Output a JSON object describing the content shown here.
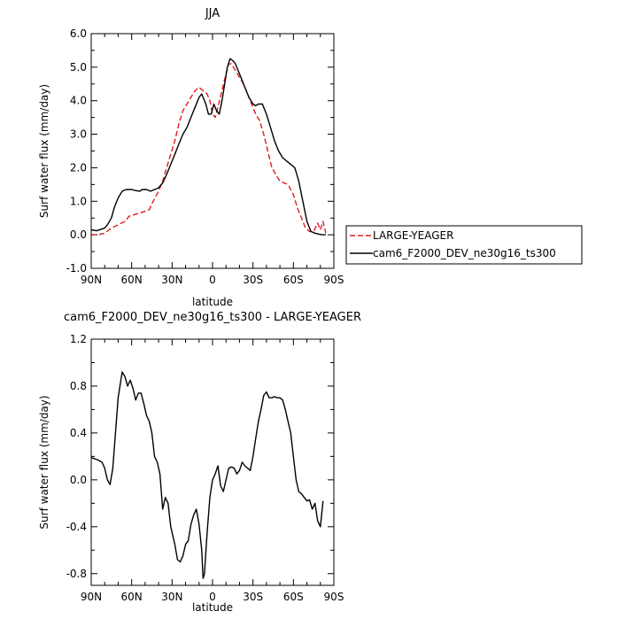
{
  "chart_data": [
    {
      "type": "line",
      "title": "JJA",
      "xlabel": "latitude",
      "ylabel": "Surf water flux (mm/day)",
      "xlim": [
        90,
        -90
      ],
      "ylim": [
        -1.0,
        6.0
      ],
      "x_ticks": [
        90,
        60,
        30,
        0,
        -30,
        -60,
        -90
      ],
      "x_tick_labels": [
        "90N",
        "60N",
        "30N",
        "0",
        "30S",
        "60S",
        "90S"
      ],
      "y_ticks": [
        -1.0,
        0.0,
        1.0,
        2.0,
        3.0,
        4.0,
        5.0,
        6.0
      ],
      "y_tick_labels": [
        "-1.0",
        "0.0",
        "1.0",
        "2.0",
        "3.0",
        "4.0",
        "5.0",
        "6.0"
      ],
      "legend_position": "outside-right",
      "series": [
        {
          "name": "LARGE-YEAGER",
          "color": "#e41a1c",
          "dash": "dashed",
          "points": [
            [
              90,
              0.0
            ],
            [
              85,
              0.0
            ],
            [
              80,
              0.05
            ],
            [
              75,
              0.2
            ],
            [
              70,
              0.3
            ],
            [
              65,
              0.4
            ],
            [
              62,
              0.55
            ],
            [
              58,
              0.6
            ],
            [
              54,
              0.65
            ],
            [
              50,
              0.7
            ],
            [
              47,
              0.75
            ],
            [
              44,
              1.0
            ],
            [
              40,
              1.3
            ],
            [
              37,
              1.6
            ],
            [
              34,
              2.0
            ],
            [
              31,
              2.4
            ],
            [
              28,
              2.8
            ],
            [
              25,
              3.3
            ],
            [
              22,
              3.7
            ],
            [
              19,
              3.9
            ],
            [
              16,
              4.1
            ],
            [
              13,
              4.3
            ],
            [
              10,
              4.4
            ],
            [
              7,
              4.3
            ],
            [
              4,
              4.2
            ],
            [
              2,
              4.0
            ],
            [
              0,
              3.6
            ],
            [
              -2,
              3.5
            ],
            [
              -4,
              3.8
            ],
            [
              -7,
              4.3
            ],
            [
              -10,
              4.8
            ],
            [
              -12,
              5.1
            ],
            [
              -14,
              5.1
            ],
            [
              -17,
              4.9
            ],
            [
              -20,
              4.7
            ],
            [
              -23,
              4.5
            ],
            [
              -26,
              4.2
            ],
            [
              -29,
              3.9
            ],
            [
              -32,
              3.6
            ],
            [
              -35,
              3.4
            ],
            [
              -38,
              3.0
            ],
            [
              -41,
              2.5
            ],
            [
              -44,
              2.0
            ],
            [
              -47,
              1.8
            ],
            [
              -50,
              1.6
            ],
            [
              -53,
              1.55
            ],
            [
              -56,
              1.5
            ],
            [
              -60,
              1.2
            ],
            [
              -63,
              0.8
            ],
            [
              -66,
              0.5
            ],
            [
              -69,
              0.2
            ],
            [
              -72,
              0.1
            ],
            [
              -75,
              0.1
            ],
            [
              -78,
              0.35
            ],
            [
              -80,
              0.15
            ],
            [
              -82,
              0.4
            ],
            [
              -84,
              0.05
            ]
          ]
        },
        {
          "name": "cam6_F2000_DEV_ne30g16_ts300",
          "color": "#000000",
          "dash": "solid",
          "points": [
            [
              90,
              0.15
            ],
            [
              86,
              0.12
            ],
            [
              80,
              0.2
            ],
            [
              78,
              0.3
            ],
            [
              75,
              0.5
            ],
            [
              73,
              0.8
            ],
            [
              70,
              1.1
            ],
            [
              67,
              1.3
            ],
            [
              64,
              1.35
            ],
            [
              60,
              1.35
            ],
            [
              57,
              1.32
            ],
            [
              54,
              1.3
            ],
            [
              52,
              1.35
            ],
            [
              49,
              1.35
            ],
            [
              46,
              1.3
            ],
            [
              43,
              1.35
            ],
            [
              40,
              1.4
            ],
            [
              37,
              1.55
            ],
            [
              34,
              1.8
            ],
            [
              31,
              2.1
            ],
            [
              28,
              2.4
            ],
            [
              25,
              2.7
            ],
            [
              22,
              3.0
            ],
            [
              19,
              3.2
            ],
            [
              16,
              3.5
            ],
            [
              13,
              3.8
            ],
            [
              10,
              4.1
            ],
            [
              8,
              4.2
            ],
            [
              5,
              3.9
            ],
            [
              3,
              3.6
            ],
            [
              1,
              3.6
            ],
            [
              -1,
              3.9
            ],
            [
              -3,
              3.7
            ],
            [
              -5,
              3.6
            ],
            [
              -7,
              4.0
            ],
            [
              -9,
              4.5
            ],
            [
              -11,
              5.0
            ],
            [
              -13,
              5.25
            ],
            [
              -15,
              5.2
            ],
            [
              -17,
              5.1
            ],
            [
              -19,
              4.9
            ],
            [
              -21,
              4.7
            ],
            [
              -24,
              4.4
            ],
            [
              -27,
              4.1
            ],
            [
              -30,
              3.9
            ],
            [
              -32,
              3.85
            ],
            [
              -34,
              3.9
            ],
            [
              -37,
              3.9
            ],
            [
              -40,
              3.6
            ],
            [
              -43,
              3.2
            ],
            [
              -46,
              2.8
            ],
            [
              -49,
              2.5
            ],
            [
              -52,
              2.3
            ],
            [
              -55,
              2.2
            ],
            [
              -58,
              2.1
            ],
            [
              -61,
              2.0
            ],
            [
              -64,
              1.6
            ],
            [
              -67,
              1.0
            ],
            [
              -70,
              0.4
            ],
            [
              -73,
              0.1
            ],
            [
              -76,
              0.05
            ],
            [
              -79,
              0.02
            ],
            [
              -81,
              0.0
            ],
            [
              -84,
              0.0
            ]
          ]
        }
      ]
    },
    {
      "type": "line",
      "title": "cam6_F2000_DEV_ne30g16_ts300 - LARGE-YEAGER",
      "xlabel": "latitude",
      "ylabel": "Surf water flux (mm/day)",
      "xlim": [
        90,
        -90
      ],
      "ylim": [
        -0.9,
        1.2
      ],
      "x_ticks": [
        90,
        60,
        30,
        0,
        -30,
        -60,
        -90
      ],
      "x_tick_labels": [
        "90N",
        "60N",
        "30N",
        "0",
        "30S",
        "60S",
        "90S"
      ],
      "y_ticks": [
        -0.8,
        -0.4,
        0.0,
        0.4,
        0.8,
        1.2
      ],
      "y_tick_labels": [
        "-0.8",
        "-0.4",
        "0.0",
        "0.4",
        "0.8",
        "1.2"
      ],
      "series": [
        {
          "name": "",
          "color": "#000000",
          "dash": "solid",
          "points": [
            [
              90,
              0.19
            ],
            [
              85,
              0.17
            ],
            [
              82,
              0.15
            ],
            [
              80,
              0.1
            ],
            [
              78,
              0.0
            ],
            [
              76,
              -0.04
            ],
            [
              74,
              0.1
            ],
            [
              72,
              0.4
            ],
            [
              70,
              0.7
            ],
            [
              68,
              0.85
            ],
            [
              67,
              0.92
            ],
            [
              65,
              0.88
            ],
            [
              63,
              0.8
            ],
            [
              61,
              0.85
            ],
            [
              59,
              0.78
            ],
            [
              57,
              0.68
            ],
            [
              55,
              0.74
            ],
            [
              53,
              0.74
            ],
            [
              51,
              0.65
            ],
            [
              49,
              0.55
            ],
            [
              47,
              0.5
            ],
            [
              45,
              0.4
            ],
            [
              43,
              0.2
            ],
            [
              41,
              0.15
            ],
            [
              39,
              0.05
            ],
            [
              37,
              -0.25
            ],
            [
              35,
              -0.15
            ],
            [
              33,
              -0.2
            ],
            [
              31,
              -0.4
            ],
            [
              28,
              -0.55
            ],
            [
              26,
              -0.68
            ],
            [
              24,
              -0.7
            ],
            [
              22,
              -0.65
            ],
            [
              20,
              -0.55
            ],
            [
              18,
              -0.52
            ],
            [
              16,
              -0.38
            ],
            [
              14,
              -0.3
            ],
            [
              12,
              -0.25
            ],
            [
              10,
              -0.38
            ],
            [
              8,
              -0.6
            ],
            [
              7,
              -0.84
            ],
            [
              6,
              -0.8
            ],
            [
              4,
              -0.45
            ],
            [
              2,
              -0.15
            ],
            [
              0,
              0.0
            ],
            [
              -2,
              0.05
            ],
            [
              -4,
              0.12
            ],
            [
              -6,
              -0.05
            ],
            [
              -8,
              -0.1
            ],
            [
              -10,
              0.0
            ],
            [
              -12,
              0.1
            ],
            [
              -14,
              0.11
            ],
            [
              -16,
              0.1
            ],
            [
              -18,
              0.05
            ],
            [
              -20,
              0.08
            ],
            [
              -22,
              0.15
            ],
            [
              -24,
              0.12
            ],
            [
              -26,
              0.1
            ],
            [
              -28,
              0.08
            ],
            [
              -30,
              0.2
            ],
            [
              -32,
              0.35
            ],
            [
              -34,
              0.5
            ],
            [
              -36,
              0.6
            ],
            [
              -38,
              0.72
            ],
            [
              -40,
              0.75
            ],
            [
              -42,
              0.7
            ],
            [
              -44,
              0.7
            ],
            [
              -46,
              0.71
            ],
            [
              -48,
              0.7
            ],
            [
              -50,
              0.7
            ],
            [
              -52,
              0.68
            ],
            [
              -54,
              0.6
            ],
            [
              -56,
              0.5
            ],
            [
              -58,
              0.4
            ],
            [
              -60,
              0.2
            ],
            [
              -62,
              0.0
            ],
            [
              -64,
              -0.1
            ],
            [
              -66,
              -0.12
            ],
            [
              -68,
              -0.15
            ],
            [
              -70,
              -0.18
            ],
            [
              -72,
              -0.17
            ],
            [
              -74,
              -0.25
            ],
            [
              -76,
              -0.2
            ],
            [
              -78,
              -0.35
            ],
            [
              -80,
              -0.4
            ],
            [
              -82,
              -0.18
            ]
          ]
        }
      ]
    }
  ]
}
